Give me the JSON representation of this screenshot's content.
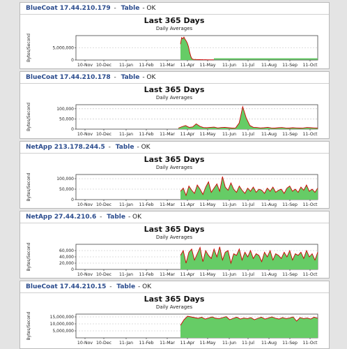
{
  "colors": {
    "fill": "#66cc66",
    "line": "#cc0000",
    "grid": "#bbbbbb",
    "link": "#2a4b8d"
  },
  "panels": [
    {
      "device": "BlueCoat 17.44.210.179",
      "table_link": "Table",
      "status": "- OK",
      "chart_data": {
        "type": "area",
        "title": "Last 365 Days",
        "subtitle": "Daily Averages",
        "ylabel": "Bytes/Second",
        "x_ticks": [
          "10-Nov",
          "10-Dec",
          "11-Jan",
          "11-Feb",
          "11-Mar",
          "11-Apr",
          "11-May",
          "11-Jun",
          "11-Jul",
          "11-Aug",
          "11-Sep",
          "11-Oct"
        ],
        "y_ticks": [
          "0",
          "5,000,000"
        ],
        "ylim": [
          0,
          10000000
        ],
        "grid": true,
        "series": [
          {
            "profile": "spike",
            "values": [
              6500000,
              9200000,
              8700000,
              9400000,
              8500000,
              7800000,
              6900000,
              5400000,
              3200000,
              1500000,
              500000,
              300000,
              200000,
              250000,
              180000,
              200000,
              150000,
              180000,
              120000,
              150000,
              100000,
              120000,
              110000,
              90000,
              100000,
              80000,
              100000,
              90000,
              80000,
              90000
            ]
          }
        ]
      }
    },
    {
      "device": "BlueCoat 17.44.210.178",
      "table_link": "Table",
      "status": "- OK",
      "chart_data": {
        "type": "area",
        "title": "Last 365 Days",
        "subtitle": "Daily Averages",
        "ylabel": "Bytes/Second",
        "x_ticks": [
          "10-Nov",
          "10-Dec",
          "11-Jan",
          "11-Feb",
          "11-Mar",
          "11-Apr",
          "11-May",
          "11-Jun",
          "11-Jul",
          "11-Aug",
          "11-Sep",
          "11-Oct"
        ],
        "y_ticks": [
          "0",
          "50,000",
          "100,000"
        ],
        "ylim": [
          0,
          120000
        ],
        "grid": true,
        "series": [
          {
            "profile": "low",
            "values": [
              5000,
              12000,
              18000,
              9000,
              11000,
              26000,
              14000,
              8000,
              7000,
              9000,
              10000,
              6000,
              8000,
              9000,
              7000,
              5000,
              6000,
              30000,
              110000,
              55000,
              18000,
              9000,
              8000,
              6000,
              7000,
              9000,
              6000,
              5000,
              7000,
              8000,
              6000,
              5000,
              7000,
              6000,
              5000,
              6000,
              8000,
              7000,
              6000,
              5000
            ]
          }
        ]
      }
    },
    {
      "device": "NetApp 213.178.244.5",
      "table_link": "Table",
      "status": "- OK",
      "chart_data": {
        "type": "area",
        "title": "Last 365 Days",
        "subtitle": "Daily Averages",
        "ylabel": "Bytes/Second",
        "x_ticks": [
          "10-Nov",
          "10-Dec",
          "11-Jan",
          "11-Feb",
          "11-Mar",
          "11-Apr",
          "11-May",
          "11-Jun",
          "11-Jul",
          "11-Aug",
          "11-Sep",
          "11-Oct"
        ],
        "y_ticks": [
          "0",
          "50,000",
          "100,000"
        ],
        "ylim": [
          0,
          120000
        ],
        "grid": true,
        "series": [
          {
            "profile": "dense",
            "values": [
              40000,
              55000,
              20000,
              65000,
              45000,
              30000,
              70000,
              50000,
              25000,
              60000,
              85000,
              35000,
              55000,
              75000,
              40000,
              110000,
              60000,
              45000,
              80000,
              50000,
              35000,
              65000,
              45000,
              30000,
              55000,
              40000,
              60000,
              35000,
              50000,
              45000,
              30000,
              55000,
              40000,
              60000,
              35000,
              45000,
              50000,
              30000,
              55000,
              65000,
              40000,
              50000,
              35000,
              60000,
              45000,
              70000,
              40000,
              50000,
              35000,
              55000
            ]
          }
        ]
      }
    },
    {
      "device": "NetApp 27.44.210.6",
      "table_link": "Table",
      "status": "- OK",
      "chart_data": {
        "type": "area",
        "title": "Last 365 Days",
        "subtitle": "Daily Averages",
        "ylabel": "Bytes/Second",
        "x_ticks": [
          "10-Nov",
          "10-Dec",
          "11-Jan",
          "11-Feb",
          "11-Mar",
          "11-Apr",
          "11-May",
          "11-Jun",
          "11-Jul",
          "11-Aug",
          "11-Sep",
          "11-Oct"
        ],
        "y_ticks": [
          "0",
          "20,000",
          "40,000",
          "60,000"
        ],
        "ylim": [
          0,
          80000
        ],
        "grid": true,
        "series": [
          {
            "profile": "dense",
            "values": [
              45000,
              60000,
              20000,
              55000,
              65000,
              30000,
              50000,
              70000,
              25000,
              60000,
              45000,
              35000,
              65000,
              40000,
              72000,
              30000,
              55000,
              60000,
              20000,
              50000,
              45000,
              65000,
              30000,
              55000,
              40000,
              60000,
              35000,
              50000,
              45000,
              25000,
              55000,
              40000,
              60000,
              30000,
              50000,
              45000,
              35000,
              55000,
              40000,
              60000,
              30000,
              50000,
              45000,
              55000,
              35000,
              60000,
              40000,
              50000,
              30000,
              55000
            ]
          }
        ]
      }
    },
    {
      "device": "BlueCoat 17.44.210.15",
      "table_link": "Table",
      "status": "- OK",
      "chart_data": {
        "type": "area",
        "title": "Last 365 Days",
        "subtitle": "Daily Averages",
        "ylabel": "Bytes/Second",
        "x_ticks": [
          "10-Nov",
          "10-Dec",
          "11-Jan",
          "11-Feb",
          "11-Mar",
          "11-Apr",
          "11-May",
          "11-Jun",
          "11-Jul",
          "11-Aug",
          "11-Sep",
          "11-Oct"
        ],
        "y_ticks": [
          "5,000,000",
          "10,000,000",
          "15,000,000"
        ],
        "ylim": [
          0,
          17000000
        ],
        "grid": true,
        "series": [
          {
            "profile": "plateau",
            "values": [
              9000000,
              13000000,
              15500000,
              15000000,
              14500000,
              14000000,
              14800000,
              13500000,
              14200000,
              15000000,
              14000000,
              13800000,
              14500000,
              15200000,
              13000000,
              14000000,
              14800000,
              13500000,
              14200000,
              13800000,
              14500000,
              13000000,
              14000000,
              14800000,
              13500000,
              14200000,
              15000000,
              14000000,
              13500000,
              14500000,
              13800000,
              14200000,
              15000000,
              12000000,
              14500000,
              13800000,
              14200000,
              13500000,
              14800000,
              14000000
            ]
          }
        ]
      }
    }
  ]
}
